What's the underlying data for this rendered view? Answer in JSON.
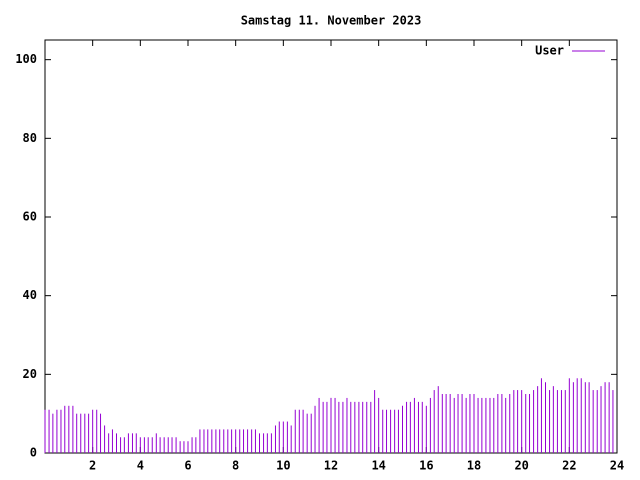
{
  "chart_data": {
    "type": "impulse",
    "title": "Samstag 11. November 2023",
    "x": [
      0,
      0.17,
      0.33,
      0.5,
      0.67,
      0.83,
      1,
      1.17,
      1.33,
      1.5,
      1.67,
      1.83,
      2,
      2.17,
      2.33,
      2.5,
      2.67,
      2.83,
      3,
      3.17,
      3.33,
      3.5,
      3.67,
      3.83,
      4,
      4.17,
      4.33,
      4.5,
      4.67,
      4.83,
      5,
      5.17,
      5.33,
      5.5,
      5.67,
      5.83,
      6,
      6.17,
      6.33,
      6.5,
      6.67,
      6.83,
      7,
      7.17,
      7.33,
      7.5,
      7.67,
      7.83,
      8,
      8.17,
      8.33,
      8.5,
      8.67,
      8.83,
      9,
      9.17,
      9.33,
      9.5,
      9.67,
      9.83,
      10,
      10.17,
      10.33,
      10.5,
      10.67,
      10.83,
      11,
      11.17,
      11.33,
      11.5,
      11.67,
      11.83,
      12,
      12.17,
      12.33,
      12.5,
      12.67,
      12.83,
      13,
      13.17,
      13.33,
      13.5,
      13.67,
      13.83,
      14,
      14.17,
      14.33,
      14.5,
      14.67,
      14.83,
      15,
      15.17,
      15.33,
      15.5,
      15.67,
      15.83,
      16,
      16.17,
      16.33,
      16.5,
      16.67,
      16.83,
      17,
      17.17,
      17.33,
      17.5,
      17.67,
      17.83,
      18,
      18.17,
      18.33,
      18.5,
      18.67,
      18.83,
      19,
      19.17,
      19.33,
      19.5,
      19.67,
      19.83,
      20,
      20.17,
      20.33,
      20.5,
      20.67,
      20.83,
      21,
      21.17,
      21.33,
      21.5,
      21.67,
      21.83,
      22,
      22.17,
      22.33,
      22.5,
      22.67,
      22.83,
      23,
      23.17,
      23.33,
      23.5,
      23.67,
      23.83
    ],
    "series": [
      {
        "name": "User",
        "color": "#9400d3",
        "values": [
          11,
          11,
          10,
          11,
          11,
          12,
          12,
          12,
          10,
          10,
          10,
          10,
          11,
          11,
          10,
          7,
          5,
          6,
          5,
          4,
          4,
          5,
          5,
          5,
          4,
          4,
          4,
          4,
          5,
          4,
          4,
          4,
          4,
          4,
          3,
          3,
          3,
          4,
          4,
          6,
          6,
          6,
          6,
          6,
          6,
          6,
          6,
          6,
          6,
          6,
          6,
          6,
          6,
          6,
          5,
          5,
          5,
          5,
          7,
          8,
          8,
          8,
          7,
          11,
          11,
          11,
          10,
          10,
          12,
          14,
          13,
          13,
          14,
          14,
          13,
          13,
          14,
          13,
          13,
          13,
          13,
          13,
          13,
          16,
          14,
          11,
          11,
          11,
          11,
          11,
          12,
          13,
          13,
          14,
          13,
          13,
          12,
          14,
          16,
          17,
          15,
          15,
          15,
          14,
          15,
          15,
          14,
          15,
          15,
          14,
          14,
          14,
          14,
          14,
          15,
          15,
          14,
          15,
          16,
          16,
          16,
          15,
          15,
          16,
          17,
          19,
          18,
          16,
          17,
          16,
          16,
          16,
          19,
          18,
          19,
          19,
          18,
          18,
          16,
          16,
          17,
          18,
          18,
          16
        ]
      }
    ],
    "xlim": [
      0,
      24
    ],
    "ylim": [
      0,
      105
    ],
    "xticks": [
      2,
      4,
      6,
      8,
      10,
      12,
      14,
      16,
      18,
      20,
      22,
      24
    ],
    "yticks": [
      0,
      20,
      40,
      60,
      80,
      100
    ],
    "legend": "top-right"
  }
}
